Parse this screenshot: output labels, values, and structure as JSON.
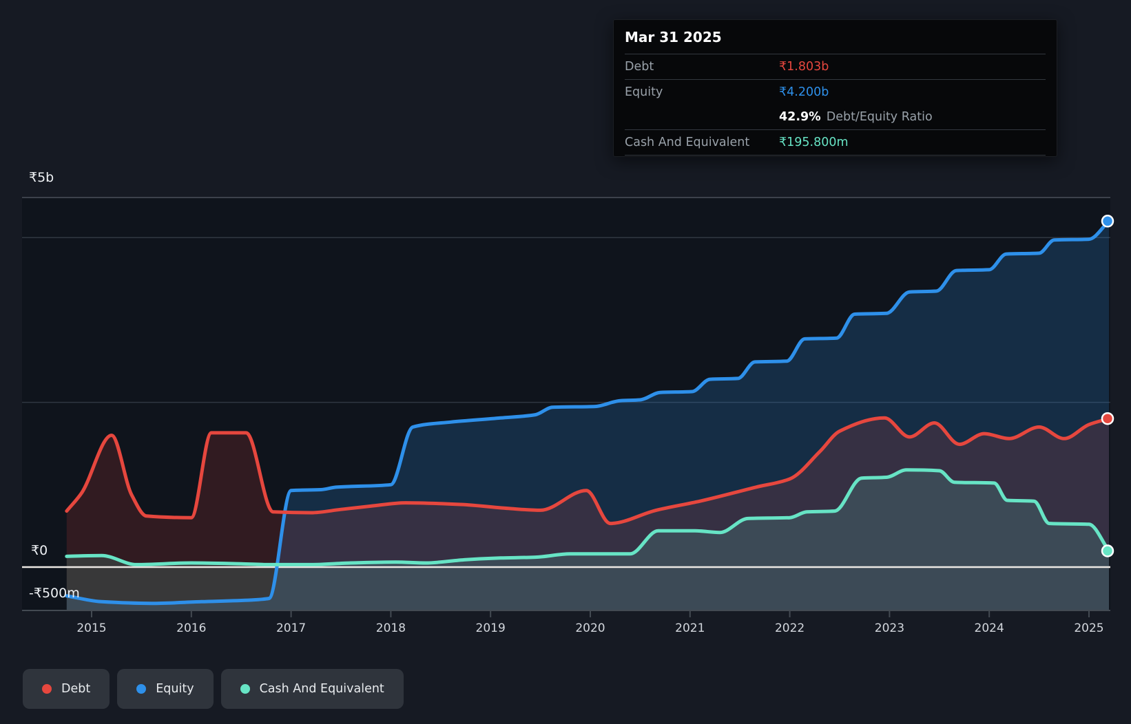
{
  "tooltip": {
    "date": "Mar 31 2025",
    "debt_label": "Debt",
    "debt_value": "₹1.803b",
    "equity_label": "Equity",
    "equity_value": "₹4.200b",
    "ratio_value": "42.9%",
    "ratio_label": "Debt/Equity Ratio",
    "cash_label": "Cash And Equivalent",
    "cash_value": "₹195.800m"
  },
  "y_axis": {
    "top": "₹5b",
    "zero": "₹0",
    "bottom": "-₹500m"
  },
  "x_axis": {
    "years": [
      "2015",
      "2016",
      "2017",
      "2018",
      "2019",
      "2020",
      "2021",
      "2022",
      "2023",
      "2024",
      "2025"
    ]
  },
  "legend": [
    {
      "label": "Debt",
      "color_key": "debt"
    },
    {
      "label": "Equity",
      "color_key": "equity"
    },
    {
      "label": "Cash And Equivalent",
      "color_key": "cash"
    }
  ],
  "colors": {
    "debt": "#e6473e",
    "equity": "#2e90ea",
    "cash": "#67e4c5",
    "zero_line": "#ece8e4",
    "baseline": "#434a52",
    "gridline": "#303741",
    "plot_top_border": "#4a505a",
    "plot_bg": "#0f141c",
    "page_bg": "#161a23"
  },
  "chart_data": {
    "type": "area",
    "title": "",
    "x_unit": "decimal year",
    "y_unit": "INR billions",
    "x_range": [
      2014.75,
      2025.25
    ],
    "gridline_values_b": [
      2,
      4
    ],
    "zero_line_value_b": 0,
    "baseline_value_b": -0.5,
    "legend_position": "bottom-left",
    "series": [
      {
        "name": "Debt",
        "color_key": "debt",
        "end_label": "₹1.803b",
        "points": [
          [
            2014.75,
            0.68
          ],
          [
            2014.9,
            0.9
          ],
          [
            2015.2,
            1.6
          ],
          [
            2015.4,
            0.88
          ],
          [
            2015.55,
            0.62
          ],
          [
            2016.0,
            0.6
          ],
          [
            2016.2,
            1.63
          ],
          [
            2016.55,
            1.63
          ],
          [
            2016.82,
            0.67
          ],
          [
            2017.2,
            0.66
          ],
          [
            2017.5,
            0.7
          ],
          [
            2017.8,
            0.74
          ],
          [
            2018.15,
            0.78
          ],
          [
            2018.7,
            0.76
          ],
          [
            2019.2,
            0.71
          ],
          [
            2019.5,
            0.69
          ],
          [
            2019.96,
            0.93
          ],
          [
            2020.2,
            0.53
          ],
          [
            2020.66,
            0.69
          ],
          [
            2021.1,
            0.8
          ],
          [
            2021.66,
            0.97
          ],
          [
            2022.0,
            1.07
          ],
          [
            2022.3,
            1.4
          ],
          [
            2022.5,
            1.65
          ],
          [
            2022.95,
            1.81
          ],
          [
            2023.2,
            1.58
          ],
          [
            2023.45,
            1.75
          ],
          [
            2023.7,
            1.49
          ],
          [
            2023.95,
            1.62
          ],
          [
            2024.2,
            1.56
          ],
          [
            2024.5,
            1.7
          ],
          [
            2024.75,
            1.56
          ],
          [
            2025.0,
            1.73
          ],
          [
            2025.2,
            1.803
          ]
        ]
      },
      {
        "name": "Equity",
        "color_key": "equity",
        "end_label": "₹4.200b",
        "points": [
          [
            2014.75,
            -0.35
          ],
          [
            2015.1,
            -0.42
          ],
          [
            2015.6,
            -0.44
          ],
          [
            2016.1,
            -0.42
          ],
          [
            2016.6,
            -0.4
          ],
          [
            2016.78,
            -0.38
          ],
          [
            2017.0,
            0.93
          ],
          [
            2017.3,
            0.94
          ],
          [
            2017.45,
            0.97
          ],
          [
            2018.0,
            1.0
          ],
          [
            2018.22,
            1.7
          ],
          [
            2018.6,
            1.76
          ],
          [
            2019.1,
            1.81
          ],
          [
            2019.45,
            1.85
          ],
          [
            2019.62,
            1.94
          ],
          [
            2020.05,
            1.95
          ],
          [
            2020.3,
            2.02
          ],
          [
            2020.5,
            2.03
          ],
          [
            2020.7,
            2.12
          ],
          [
            2021.02,
            2.13
          ],
          [
            2021.2,
            2.28
          ],
          [
            2021.48,
            2.29
          ],
          [
            2021.65,
            2.49
          ],
          [
            2021.97,
            2.5
          ],
          [
            2022.15,
            2.77
          ],
          [
            2022.47,
            2.78
          ],
          [
            2022.65,
            3.07
          ],
          [
            2022.97,
            3.08
          ],
          [
            2023.2,
            3.34
          ],
          [
            2023.47,
            3.35
          ],
          [
            2023.67,
            3.6
          ],
          [
            2024.0,
            3.61
          ],
          [
            2024.17,
            3.8
          ],
          [
            2024.5,
            3.81
          ],
          [
            2024.65,
            3.97
          ],
          [
            2025.0,
            3.98
          ],
          [
            2025.2,
            4.2
          ]
        ]
      },
      {
        "name": "Cash And Equivalent",
        "color_key": "cash",
        "end_label": "₹195.800m",
        "points": [
          [
            2014.75,
            0.13
          ],
          [
            2015.1,
            0.14
          ],
          [
            2015.45,
            0.03
          ],
          [
            2016.0,
            0.05
          ],
          [
            2016.5,
            0.04
          ],
          [
            2016.78,
            0.03
          ],
          [
            2017.2,
            0.03
          ],
          [
            2017.6,
            0.05
          ],
          [
            2018.05,
            0.06
          ],
          [
            2018.35,
            0.05
          ],
          [
            2018.75,
            0.09
          ],
          [
            2019.1,
            0.11
          ],
          [
            2019.45,
            0.12
          ],
          [
            2019.8,
            0.16
          ],
          [
            2020.4,
            0.16
          ],
          [
            2020.68,
            0.44
          ],
          [
            2021.05,
            0.44
          ],
          [
            2021.3,
            0.42
          ],
          [
            2021.58,
            0.59
          ],
          [
            2022.0,
            0.6
          ],
          [
            2022.17,
            0.67
          ],
          [
            2022.45,
            0.68
          ],
          [
            2022.72,
            1.08
          ],
          [
            2022.97,
            1.09
          ],
          [
            2023.17,
            1.18
          ],
          [
            2023.5,
            1.17
          ],
          [
            2023.65,
            1.03
          ],
          [
            2024.05,
            1.02
          ],
          [
            2024.18,
            0.81
          ],
          [
            2024.45,
            0.8
          ],
          [
            2024.6,
            0.53
          ],
          [
            2025.0,
            0.52
          ],
          [
            2025.2,
            0.196
          ]
        ]
      }
    ],
    "end_markers": true
  }
}
